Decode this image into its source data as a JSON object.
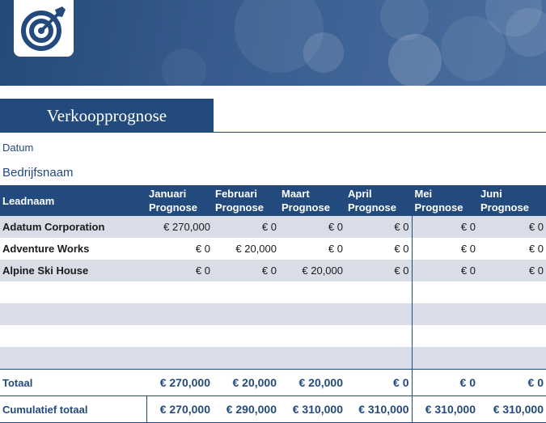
{
  "header": {
    "logo_icon": "target-icon",
    "title": "Verkoopprognose",
    "date_label": "Datum",
    "company_label": "Bedrijfsnaam"
  },
  "table": {
    "lead_header": "Leadnaam",
    "months": [
      {
        "month": "Januari",
        "sub": "Prognose"
      },
      {
        "month": "Februari",
        "sub": "Prognose"
      },
      {
        "month": "Maart",
        "sub": "Prognose"
      },
      {
        "month": "April",
        "sub": "Prognose"
      },
      {
        "month": "Mei",
        "sub": "Prognose"
      },
      {
        "month": "Juni",
        "sub": "Prognose"
      }
    ],
    "rows": [
      {
        "name": "Adatum Corporation",
        "values": [
          "€ 270,000",
          "€ 0",
          "€ 0",
          "€ 0",
          "€ 0",
          "€ 0"
        ]
      },
      {
        "name": "Adventure Works",
        "values": [
          "€ 0",
          "€ 20,000",
          "€ 0",
          "€ 0",
          "€ 0",
          "€ 0"
        ]
      },
      {
        "name": "Alpine Ski House",
        "values": [
          "€ 0",
          "€ 0",
          "€ 20,000",
          "€ 0",
          "€ 0",
          "€ 0"
        ]
      }
    ],
    "total": {
      "label": "Totaal",
      "values": [
        "€ 270,000",
        "€ 20,000",
        "€ 20,000",
        "€ 0",
        "€ 0",
        "€ 0"
      ]
    },
    "cumulative": {
      "label": "Cumulatief totaal",
      "values": [
        "€ 270,000",
        "€ 290,000",
        "€ 310,000",
        "€ 310,000",
        "€ 310,000",
        "€ 310,000"
      ]
    }
  },
  "colors": {
    "accent": "#234a7c",
    "band": "#d8dde8"
  }
}
